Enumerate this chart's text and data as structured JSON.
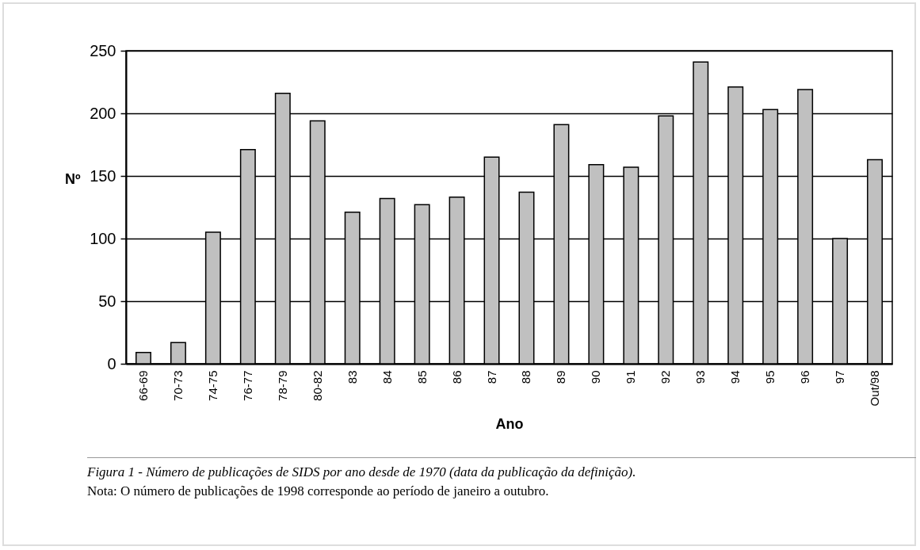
{
  "chart_data": {
    "type": "bar",
    "xlabel": "Ano",
    "ylabel": "Nº",
    "categories": [
      "66-69",
      "70-73",
      "74-75",
      "76-77",
      "78-79",
      "80-82",
      "83",
      "84",
      "85",
      "86",
      "87",
      "88",
      "89",
      "90",
      "91",
      "92",
      "93",
      "94",
      "95",
      "96",
      "97",
      "Out/98"
    ],
    "values": [
      9,
      17,
      105,
      171,
      216,
      194,
      121,
      132,
      127,
      133,
      165,
      137,
      191,
      159,
      157,
      198,
      241,
      221,
      203,
      219,
      100,
      163
    ],
    "color": "#c0c0c0",
    "ylim": [
      0,
      250
    ],
    "yticks": [
      0,
      50,
      100,
      150,
      200,
      250
    ],
    "grid": "y",
    "annotations": [
      "Figura 1 - Número de publicações de SIDS por ano desde de 1970 (data da publicação da definição).",
      "Nota: O número de publicações de 1998 corresponde ao período de janeiro a outubro."
    ]
  }
}
